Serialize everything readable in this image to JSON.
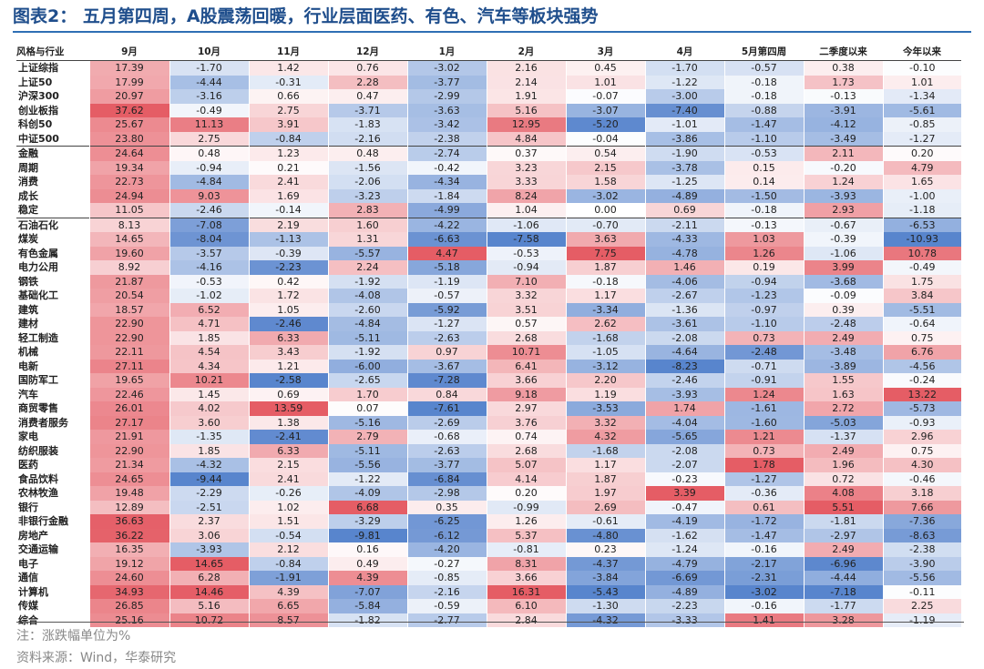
{
  "title": "图表2：  五月第四周，A股震荡回暖，行业层面医药、有色、汽车等板块强势",
  "chart_data": {
    "type": "table",
    "columns": [
      "风格与行业",
      "9月",
      "10月",
      "11月",
      "12月",
      "1月",
      "2月",
      "3月",
      "4月",
      "5月第四周",
      "二季度以来",
      "今年以来"
    ],
    "rows": [
      {
        "label": "上证综指",
        "values": [
          17.39,
          -1.7,
          1.42,
          0.76,
          -3.02,
          2.16,
          0.45,
          -1.7,
          -0.57,
          0.38,
          -0.1
        ]
      },
      {
        "label": "上证50",
        "values": [
          17.99,
          -4.44,
          -0.31,
          2.28,
          -3.77,
          2.14,
          1.01,
          -1.22,
          -0.18,
          1.73,
          1.01
        ]
      },
      {
        "label": "沪深300",
        "values": [
          20.97,
          -3.16,
          0.66,
          0.47,
          -2.99,
          1.91,
          -0.07,
          -3.0,
          -0.18,
          -0.13,
          -1.34
        ]
      },
      {
        "label": "创业板指",
        "values": [
          37.62,
          -0.49,
          2.75,
          -3.71,
          -3.63,
          5.16,
          -3.07,
          -7.4,
          -0.88,
          -3.91,
          -5.61
        ]
      },
      {
        "label": "科创50",
        "values": [
          25.67,
          11.13,
          3.91,
          -1.83,
          -3.42,
          12.95,
          -5.2,
          -1.01,
          -1.47,
          -4.12,
          -0.85
        ]
      },
      {
        "label": "中证500",
        "values": [
          23.8,
          2.75,
          -0.84,
          -2.16,
          -2.38,
          4.84,
          -0.04,
          -3.86,
          -1.1,
          -3.49,
          -1.27
        ]
      },
      {
        "label": "金融",
        "values": [
          24.64,
          0.48,
          1.23,
          0.48,
          -2.74,
          0.37,
          0.54,
          -1.9,
          -0.53,
          2.11,
          0.2
        ]
      },
      {
        "label": "周期",
        "values": [
          19.34,
          -0.94,
          0.21,
          -1.56,
          -0.42,
          3.23,
          2.15,
          -3.78,
          0.15,
          -0.2,
          4.79
        ]
      },
      {
        "label": "消费",
        "values": [
          22.73,
          -4.84,
          2.41,
          -2.06,
          -4.34,
          3.33,
          1.58,
          -1.25,
          0.14,
          1.24,
          1.65
        ]
      },
      {
        "label": "成长",
        "values": [
          24.94,
          9.03,
          1.69,
          -3.23,
          -1.84,
          8.24,
          -3.02,
          -4.89,
          -1.5,
          -3.93,
          -1.0
        ]
      },
      {
        "label": "稳定",
        "values": [
          11.05,
          -2.46,
          -0.14,
          2.83,
          -4.99,
          1.04,
          0.0,
          0.69,
          -0.18,
          2.93,
          -1.18
        ]
      },
      {
        "label": "石油石化",
        "values": [
          8.13,
          -7.08,
          2.19,
          1.6,
          -4.22,
          -1.06,
          -0.7,
          -2.11,
          -0.13,
          -0.67,
          -6.53
        ]
      },
      {
        "label": "煤炭",
        "values": [
          14.65,
          -8.04,
          -1.13,
          1.31,
          -6.63,
          -7.58,
          3.63,
          -4.33,
          1.03,
          -0.39,
          -10.93
        ]
      },
      {
        "label": "有色金属",
        "values": [
          19.6,
          -3.57,
          -0.39,
          -5.57,
          4.47,
          -0.53,
          7.75,
          -4.78,
          1.26,
          -1.06,
          10.78
        ]
      },
      {
        "label": "电力公用",
        "values": [
          8.92,
          -4.16,
          -2.23,
          2.24,
          -5.18,
          -0.94,
          1.87,
          1.46,
          0.19,
          3.99,
          -0.49
        ]
      },
      {
        "label": "钢铁",
        "values": [
          21.87,
          -0.53,
          0.42,
          -1.92,
          -1.19,
          7.1,
          -0.18,
          -4.06,
          -0.94,
          -3.68,
          1.75
        ]
      },
      {
        "label": "基础化工",
        "values": [
          20.54,
          -1.02,
          1.72,
          -4.08,
          -0.57,
          3.32,
          1.17,
          -2.67,
          -1.23,
          -0.09,
          3.84
        ]
      },
      {
        "label": "建筑",
        "values": [
          18.57,
          6.52,
          1.05,
          -2.6,
          -5.92,
          3.51,
          -3.34,
          -1.36,
          -0.97,
          0.39,
          -5.51
        ]
      },
      {
        "label": "建材",
        "values": [
          22.9,
          4.71,
          -2.46,
          -4.84,
          -1.27,
          0.57,
          2.62,
          -3.61,
          -1.1,
          -2.48,
          -0.64
        ]
      },
      {
        "label": "轻工制造",
        "values": [
          22.9,
          1.85,
          6.33,
          -5.11,
          -2.63,
          2.68,
          -1.68,
          -2.08,
          0.73,
          2.49,
          0.75
        ]
      },
      {
        "label": "机械",
        "values": [
          22.11,
          4.54,
          3.43,
          -1.92,
          0.97,
          10.71,
          -1.05,
          -4.64,
          -2.48,
          -3.48,
          6.76
        ]
      },
      {
        "label": "电新",
        "values": [
          27.11,
          4.34,
          1.21,
          -6.0,
          -3.67,
          6.41,
          -3.12,
          -8.23,
          -0.71,
          -3.89,
          -4.56
        ]
      },
      {
        "label": "国防军工",
        "values": [
          19.65,
          10.21,
          -2.58,
          -2.65,
          -7.28,
          3.66,
          2.2,
          -2.46,
          -0.91,
          1.55,
          -0.24
        ]
      },
      {
        "label": "汽车",
        "values": [
          22.46,
          1.45,
          0.69,
          1.7,
          0.84,
          9.18,
          1.19,
          -3.93,
          1.24,
          1.63,
          13.22
        ]
      },
      {
        "label": "商贸零售",
        "values": [
          26.01,
          4.02,
          13.59,
          0.07,
          -7.61,
          2.97,
          -3.53,
          1.74,
          -1.61,
          2.72,
          -5.73
        ]
      },
      {
        "label": "消费者服务",
        "values": [
          27.17,
          3.6,
          1.38,
          -5.16,
          -2.69,
          3.76,
          3.32,
          -4.04,
          -1.6,
          -5.03,
          -0.93
        ]
      },
      {
        "label": "家电",
        "values": [
          21.91,
          -1.35,
          -2.41,
          2.79,
          -0.68,
          0.74,
          4.32,
          -5.65,
          1.21,
          -1.37,
          2.96
        ]
      },
      {
        "label": "纺织服装",
        "values": [
          22.9,
          1.85,
          6.33,
          -5.11,
          -2.63,
          2.68,
          -1.68,
          -2.08,
          0.73,
          2.49,
          0.75
        ]
      },
      {
        "label": "医药",
        "values": [
          21.34,
          -4.32,
          2.15,
          -5.56,
          -3.77,
          5.07,
          1.17,
          -2.07,
          1.78,
          1.96,
          4.3
        ]
      },
      {
        "label": "食品饮料",
        "values": [
          24.65,
          -9.44,
          2.41,
          -1.22,
          -6.84,
          4.14,
          1.87,
          -0.23,
          -1.27,
          0.72,
          -0.46
        ]
      },
      {
        "label": "农林牧渔",
        "values": [
          19.48,
          -2.29,
          -0.26,
          -4.09,
          -2.98,
          0.2,
          1.97,
          3.39,
          -0.36,
          4.08,
          3.18
        ]
      },
      {
        "label": "银行",
        "values": [
          12.89,
          -2.51,
          1.02,
          6.68,
          0.35,
          -0.99,
          2.69,
          -0.47,
          0.61,
          5.51,
          7.66
        ]
      },
      {
        "label": "非银行金融",
        "values": [
          36.63,
          2.37,
          1.51,
          -3.29,
          -6.25,
          1.26,
          -0.61,
          -4.19,
          -1.72,
          -1.81,
          -7.36
        ]
      },
      {
        "label": "房地产",
        "values": [
          36.22,
          3.06,
          -0.54,
          -9.81,
          -6.12,
          5.37,
          -4.8,
          -1.62,
          -1.47,
          -2.97,
          -8.63
        ]
      },
      {
        "label": "交通运输",
        "values": [
          16.35,
          -3.93,
          2.12,
          0.16,
          -4.2,
          -0.81,
          0.23,
          -1.24,
          -0.16,
          2.49,
          -2.38
        ]
      },
      {
        "label": "电子",
        "values": [
          19.12,
          14.65,
          -0.84,
          0.49,
          -0.27,
          8.31,
          -4.37,
          -4.79,
          -2.17,
          -6.96,
          -3.9
        ]
      },
      {
        "label": "通信",
        "values": [
          24.6,
          6.28,
          -1.91,
          4.39,
          -0.85,
          3.66,
          -3.84,
          -6.69,
          -2.31,
          -4.44,
          -5.56
        ]
      },
      {
        "label": "计算机",
        "values": [
          34.93,
          14.46,
          4.39,
          -7.07,
          -2.16,
          16.31,
          -5.43,
          -4.89,
          -3.02,
          -7.18,
          -0.11
        ]
      },
      {
        "label": "传媒",
        "values": [
          26.85,
          5.16,
          6.65,
          -5.84,
          -0.59,
          6.1,
          -1.3,
          -2.23,
          -0.16,
          -1.77,
          2.25
        ]
      },
      {
        "label": "综合",
        "values": [
          25.16,
          10.72,
          8.57,
          -1.82,
          -2.77,
          2.84,
          -4.32,
          -3.33,
          1.41,
          3.28,
          -1.19
        ]
      }
    ],
    "colors": {
      "positive": "#e0404a",
      "negative": "#3b6fc4",
      "neutral": "#ffffff"
    }
  },
  "notes": {
    "unit": "注：涨跌幅单位为%",
    "source": "资料来源：Wind，华泰研究"
  }
}
